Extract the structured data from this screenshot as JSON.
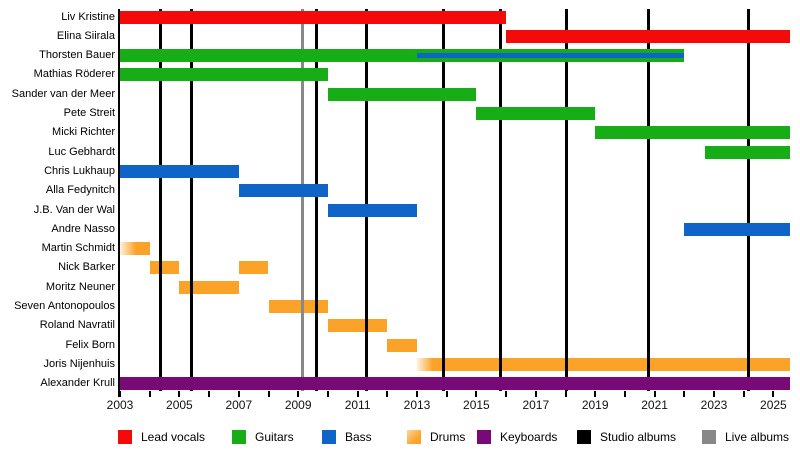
{
  "chart_data": {
    "type": "bar",
    "subtype": "gantt-membership-timeline",
    "title": "",
    "grid": false,
    "legend_position": "bottom",
    "x_axis": {
      "min_year": 2003,
      "present_end": 2025.55,
      "tick_every_year": true,
      "label_years": [
        2003,
        2005,
        2007,
        2009,
        2011,
        2013,
        2015,
        2017,
        2019,
        2021,
        2023,
        2025
      ]
    },
    "rows": [
      {
        "name": "Liv Kristine",
        "segments": [
          {
            "role": "Lead vocals",
            "start": 2003,
            "end": 2016
          }
        ]
      },
      {
        "name": "Elina Siirala",
        "segments": [
          {
            "role": "Lead vocals",
            "start": 2016,
            "end": "present"
          }
        ]
      },
      {
        "name": "Thorsten Bauer",
        "segments": [
          {
            "role": "Guitars",
            "start": 2003,
            "end": 2022
          },
          {
            "role": "Bass",
            "start": 2013,
            "end": 2022,
            "stripe": true
          }
        ]
      },
      {
        "name": "Mathias Röderer",
        "segments": [
          {
            "role": "Guitars",
            "start": 2003,
            "end": 2010
          }
        ]
      },
      {
        "name": "Sander van der Meer",
        "segments": [
          {
            "role": "Guitars",
            "start": 2010,
            "end": 2015
          }
        ]
      },
      {
        "name": "Pete Streit",
        "segments": [
          {
            "role": "Guitars",
            "start": 2015,
            "end": 2019
          }
        ]
      },
      {
        "name": "Micki Richter",
        "segments": [
          {
            "role": "Guitars",
            "start": 2019,
            "end": "present"
          }
        ]
      },
      {
        "name": "Luc Gebhardt",
        "segments": [
          {
            "role": "Guitars",
            "start": 2022.7,
            "end": "present"
          }
        ]
      },
      {
        "name": "Chris Lukhaup",
        "segments": [
          {
            "role": "Bass",
            "start": 2003,
            "end": 2007
          }
        ]
      },
      {
        "name": "Alla Fedynitch",
        "segments": [
          {
            "role": "Bass",
            "start": 2007,
            "end": 2010
          }
        ]
      },
      {
        "name": "J.B. Van der Wal",
        "segments": [
          {
            "role": "Bass",
            "start": 2010,
            "end": 2013
          }
        ]
      },
      {
        "name": "Andre Nasso",
        "segments": [
          {
            "role": "Bass",
            "start": 2022,
            "end": "present"
          }
        ]
      },
      {
        "name": "Martin Schmidt",
        "segments": [
          {
            "role": "Drums",
            "start": 2003,
            "end": 2004,
            "fade_left": true
          }
        ]
      },
      {
        "name": "Nick Barker",
        "segments": [
          {
            "role": "Drums",
            "start": 2004,
            "end": 2005
          },
          {
            "role": "Drums",
            "start": 2007,
            "end": 2008
          }
        ]
      },
      {
        "name": "Moritz Neuner",
        "segments": [
          {
            "role": "Drums",
            "start": 2005,
            "end": 2007
          }
        ]
      },
      {
        "name": "Seven Antonopoulos",
        "segments": [
          {
            "role": "Drums",
            "start": 2008,
            "end": 2010
          }
        ]
      },
      {
        "name": "Roland Navratil",
        "segments": [
          {
            "role": "Drums",
            "start": 2010,
            "end": 2012
          }
        ]
      },
      {
        "name": "Felix Born",
        "segments": [
          {
            "role": "Drums",
            "start": 2012,
            "end": 2013
          }
        ]
      },
      {
        "name": "Joris Nijenhuis",
        "segments": [
          {
            "role": "Drums",
            "start": 2013,
            "end": "present",
            "fade_left": true
          }
        ]
      },
      {
        "name": "Alexander Krull",
        "segments": [
          {
            "role": "Keyboards",
            "start": 2003,
            "end": "present"
          }
        ]
      }
    ],
    "markers": {
      "studio_albums": [
        2004.35,
        2005.4,
        2009.6,
        2011.3,
        2013.9,
        2015.8,
        2018.05,
        2020.8,
        2024.15
      ],
      "live_albums": [
        2009.15
      ]
    },
    "legend": [
      {
        "label": "Lead vocals",
        "color": "#f50a0a"
      },
      {
        "label": "Guitars",
        "color": "#16ad16"
      },
      {
        "label": "Bass",
        "color": "#0f64c8"
      },
      {
        "label": "Drums",
        "color": "#faa328"
      },
      {
        "label": "Keyboards",
        "color": "#770a77"
      },
      {
        "label": "Studio albums",
        "color": "#000000"
      },
      {
        "label": "Live albums",
        "color": "#888888"
      }
    ]
  },
  "colors": {
    "lead_vocals": "#f50a0a",
    "guitars": "#16ad16",
    "bass": "#0f64c8",
    "drums": "#faa328",
    "keyboards": "#770a77",
    "studio_album_line": "#000000",
    "live_album_line": "#888888",
    "background": "#ffffff",
    "text": "#000000"
  }
}
